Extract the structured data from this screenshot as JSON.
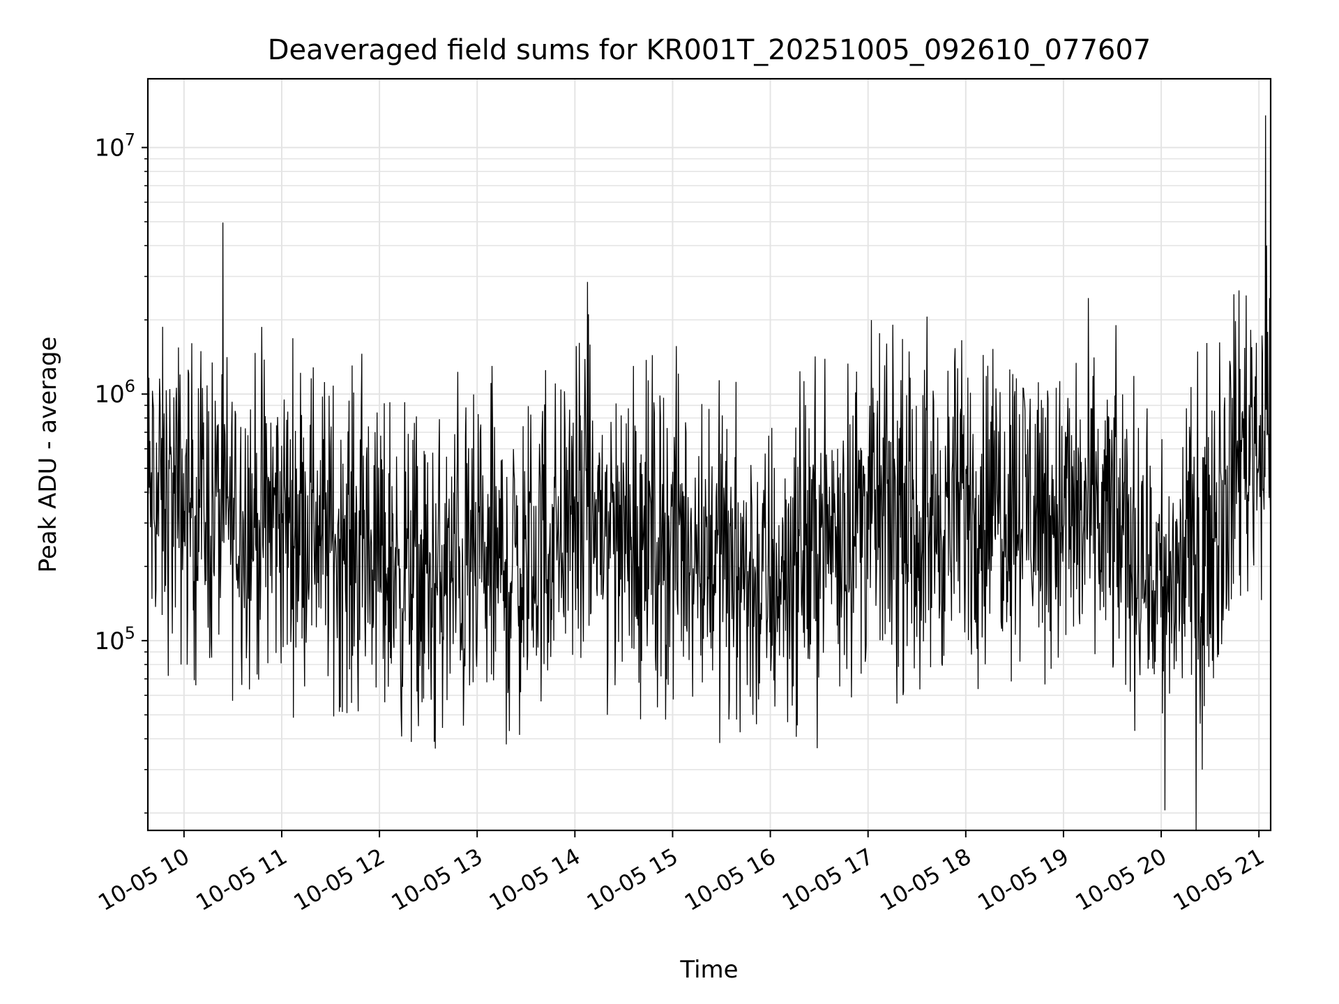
{
  "chart_data": {
    "type": "line",
    "title": "Deaveraged field sums for KR001T_20251005_092610_077607",
    "xlabel": "Time",
    "ylabel": "Peak ADU - average",
    "x_unit": "hours (decimal, 2025-10-05)",
    "xlim": [
      9.63,
      21.12
    ],
    "yscale": "log",
    "ylim": [
      17000,
      19000000
    ],
    "x_ticks": [
      {
        "value": 10,
        "label": "10-05 10"
      },
      {
        "value": 11,
        "label": "10-05 11"
      },
      {
        "value": 12,
        "label": "10-05 12"
      },
      {
        "value": 13,
        "label": "10-05 13"
      },
      {
        "value": 14,
        "label": "10-05 14"
      },
      {
        "value": 15,
        "label": "10-05 15"
      },
      {
        "value": 16,
        "label": "10-05 16"
      },
      {
        "value": 17,
        "label": "10-05 17"
      },
      {
        "value": 18,
        "label": "10-05 18"
      },
      {
        "value": 19,
        "label": "10-05 19"
      },
      {
        "value": 20,
        "label": "10-05 20"
      },
      {
        "value": 21,
        "label": "10-05 21"
      }
    ],
    "y_ticks": [
      {
        "value": 100000,
        "base": "10",
        "exp": "5"
      },
      {
        "value": 1000000,
        "base": "10",
        "exp": "6"
      },
      {
        "value": 10000000,
        "base": "10",
        "exp": "7"
      }
    ],
    "grid": true,
    "series": [
      {
        "name": "field sums",
        "color": "#000000",
        "trend": [
          {
            "x": 9.63,
            "y": 380000
          },
          {
            "x": 10.3,
            "y": 340000
          },
          {
            "x": 10.9,
            "y": 300000
          },
          {
            "x": 11.3,
            "y": 330000
          },
          {
            "x": 11.5,
            "y": 260000
          },
          {
            "x": 12.0,
            "y": 220000
          },
          {
            "x": 12.5,
            "y": 170000
          },
          {
            "x": 13.0,
            "y": 190000
          },
          {
            "x": 13.5,
            "y": 200000
          },
          {
            "x": 14.0,
            "y": 330000
          },
          {
            "x": 14.5,
            "y": 290000
          },
          {
            "x": 15.0,
            "y": 260000
          },
          {
            "x": 15.5,
            "y": 240000
          },
          {
            "x": 15.9,
            "y": 160000
          },
          {
            "x": 16.5,
            "y": 260000
          },
          {
            "x": 17.0,
            "y": 350000
          },
          {
            "x": 17.5,
            "y": 280000
          },
          {
            "x": 18.0,
            "y": 360000
          },
          {
            "x": 18.5,
            "y": 390000
          },
          {
            "x": 19.0,
            "y": 330000
          },
          {
            "x": 19.5,
            "y": 300000
          },
          {
            "x": 20.0,
            "y": 180000
          },
          {
            "x": 20.3,
            "y": 210000
          },
          {
            "x": 20.6,
            "y": 330000
          },
          {
            "x": 20.8,
            "y": 650000
          },
          {
            "x": 21.12,
            "y": 750000
          }
        ],
        "spikes": [
          {
            "x": 14.13,
            "y": 2850000
          },
          {
            "x": 21.07,
            "y": 13500000
          },
          {
            "x": 21.11,
            "y": 2450000
          },
          {
            "x": 13.15,
            "y": 1300000
          },
          {
            "x": 12.8,
            "y": 1230000
          },
          {
            "x": 13.7,
            "y": 1250000
          },
          {
            "x": 14.6,
            "y": 1300000
          },
          {
            "x": 15.65,
            "y": 1120000
          },
          {
            "x": 20.6,
            "y": 1620000
          },
          {
            "x": 20.04,
            "y": 20500
          },
          {
            "x": 20.42,
            "y": 30000
          },
          {
            "x": 12.57,
            "y": 36500
          },
          {
            "x": 12.4,
            "y": 45000
          },
          {
            "x": 13.33,
            "y": 43000
          },
          {
            "x": 14.33,
            "y": 50000
          },
          {
            "x": 14.67,
            "y": 48000
          },
          {
            "x": 15.58,
            "y": 58000
          }
        ]
      }
    ]
  }
}
